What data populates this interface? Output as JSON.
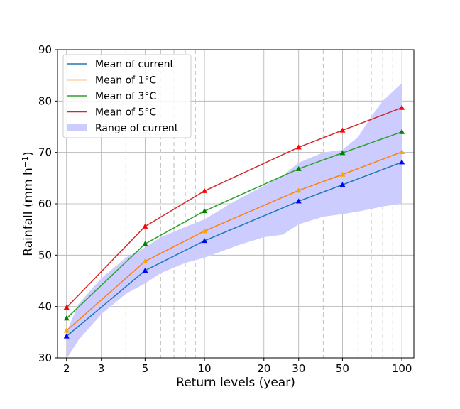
{
  "chart_data": {
    "type": "line",
    "title": "",
    "xlabel": "Return levels (year)",
    "ylabel": "Rainfall (mm h",
    "ylabel_sup": "−1",
    "ylabel_end": ")",
    "xscale": "log",
    "xlim": [
      1.8,
      115
    ],
    "ylim": [
      30,
      90
    ],
    "xticks": [
      2,
      3,
      5,
      10,
      20,
      30,
      50,
      100
    ],
    "xtick_labels": [
      "2",
      "3",
      "5",
      "10",
      "20",
      "30",
      "50",
      "100"
    ],
    "yticks": [
      30,
      40,
      50,
      60,
      70,
      80,
      90
    ],
    "ytick_labels": [
      "30",
      "40",
      "50",
      "60",
      "70",
      "80",
      "90"
    ],
    "minor_dashed_x": [
      4,
      6,
      7,
      8,
      9,
      40,
      60,
      70,
      80,
      90
    ],
    "grid": true,
    "legend_position": "top-left",
    "marker_x": [
      2,
      5,
      10,
      30,
      50,
      100
    ],
    "series": [
      {
        "name": "Mean of current",
        "color": "#1f77b4",
        "marker_color": "#0000ff",
        "values": [
          34.2,
          47.0,
          52.8,
          60.5,
          63.7,
          68.1
        ]
      },
      {
        "name": "Mean of 1°C",
        "color": "#ff7f0e",
        "marker_color": "#ffa500",
        "values": [
          35.3,
          48.8,
          54.7,
          62.6,
          65.7,
          70.1
        ]
      },
      {
        "name": "Mean of 3°C",
        "color": "#2ca02c",
        "marker_color": "#008000",
        "values": [
          37.7,
          52.2,
          58.6,
          66.8,
          69.9,
          74.0
        ]
      },
      {
        "name": "Mean of 5°C",
        "color": "#d62728",
        "marker_color": "#ff0000",
        "values": [
          39.8,
          55.6,
          62.5,
          71.0,
          74.3,
          78.7
        ]
      }
    ],
    "range": {
      "name": "Range of current",
      "color": "#ccccff",
      "x": [
        2,
        2.3,
        3,
        4,
        5,
        6,
        8,
        10,
        15,
        20,
        25,
        30,
        40,
        50,
        60,
        70,
        80,
        100
      ],
      "lower": [
        29.8,
        33.5,
        38.5,
        42.5,
        44.5,
        46.5,
        48.5,
        49.5,
        52.0,
        53.5,
        54.0,
        56.0,
        57.5,
        58.0,
        58.5,
        59.0,
        59.5,
        60.0
      ],
      "upper": [
        35.0,
        40.5,
        45.5,
        49.5,
        51.5,
        53.5,
        55.5,
        57.0,
        61.0,
        63.5,
        65.5,
        68.0,
        70.0,
        70.5,
        73.0,
        77.0,
        80.0,
        83.5
      ]
    }
  }
}
